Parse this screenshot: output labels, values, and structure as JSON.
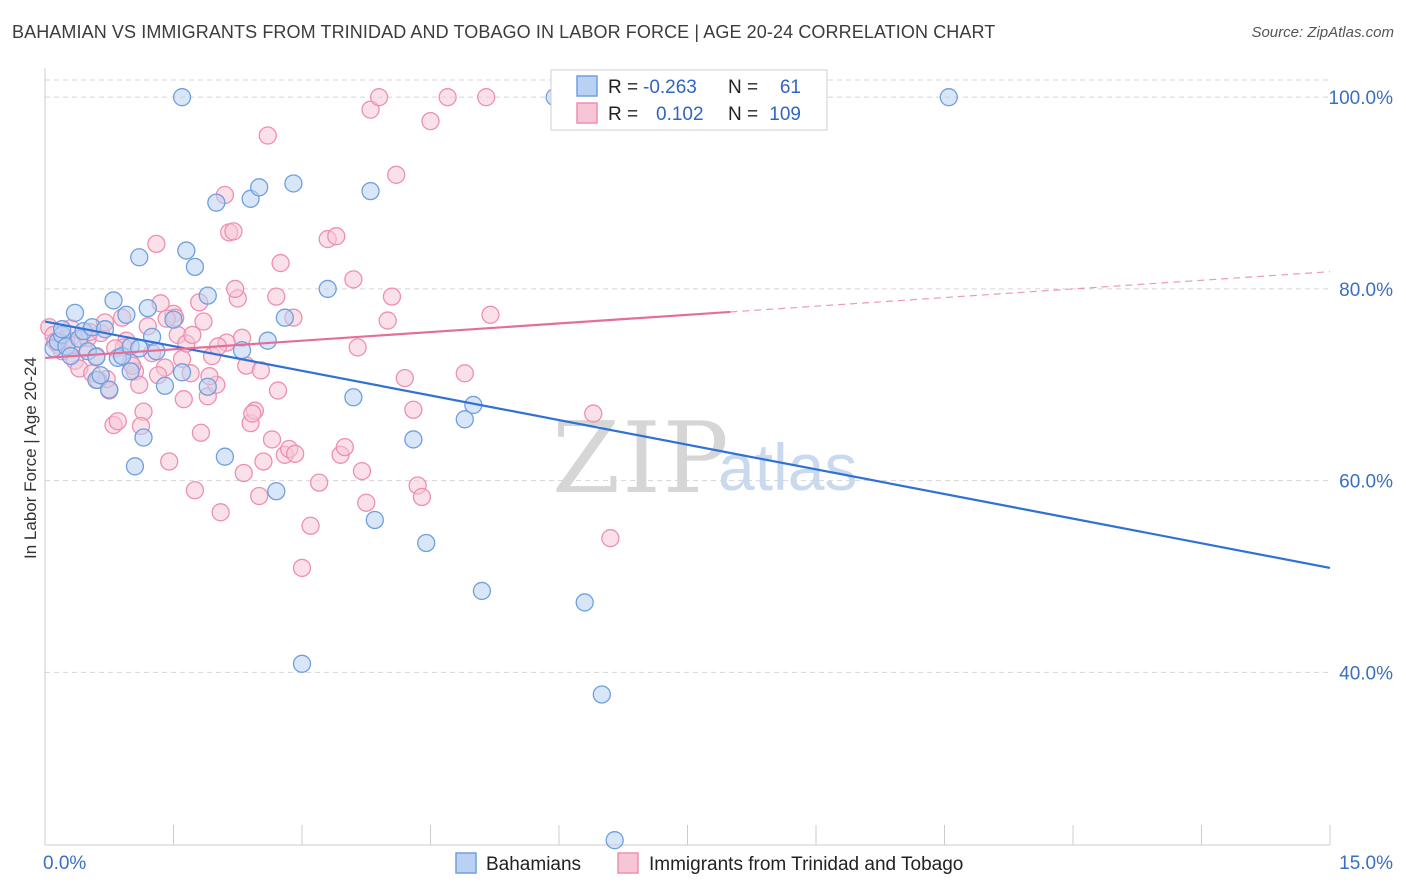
{
  "title": "BAHAMIAN VS IMMIGRANTS FROM TRINIDAD AND TOBAGO IN LABOR FORCE | AGE 20-24 CORRELATION CHART",
  "source": "Source: ZipAtlas.com",
  "watermark": {
    "zip": "ZIP",
    "atlas": "atlas"
  },
  "colors": {
    "blue": "#6f9fe0",
    "blue_fill": "#b9d1f2",
    "blue_line": "#2f72d4",
    "pink": "#ee8fb1",
    "pink_fill": "#f6c6d6",
    "pink_line": "#e56e99",
    "grid": "#d5d5d5",
    "tick_text": "#3a6fc4"
  },
  "legend_top": {
    "rows": [
      {
        "r_label": "R =",
        "r_value": "-0.263",
        "n_label": "N =",
        "n_value": "61",
        "series": "blue"
      },
      {
        "r_label": "R =",
        "r_value": "0.102",
        "n_label": "N =",
        "n_value": "109",
        "series": "pink"
      }
    ]
  },
  "legend_bottom": [
    "Bahamians",
    "Immigrants from Trinidad and Tobago"
  ],
  "chart_data": {
    "type": "scatter",
    "title": "BAHAMIAN VS IMMIGRANTS FROM TRINIDAD AND TOBAGO IN LABOR FORCE | AGE 20-24 CORRELATION CHART",
    "xlabel": "",
    "ylabel": "In Labor Force | Age 20-24",
    "xlim": [
      0,
      15
    ],
    "ylim": [
      22,
      102
    ],
    "x_tick_labels": [
      "0.0%",
      "15.0%"
    ],
    "y_ticks": [
      40,
      60,
      80,
      100
    ],
    "y_tick_labels": [
      "40.0%",
      "60.0%",
      "80.0%",
      "100.0%"
    ],
    "grid": true,
    "legend_placement": "bottom",
    "series": [
      {
        "name": "Bahamians",
        "color": "blue",
        "r": -0.263,
        "n": 61,
        "trend": {
          "x": [
            0,
            15
          ],
          "y": [
            76.6,
            50.9
          ],
          "dashed_from": null
        },
        "points": [
          [
            0.1,
            73.8
          ],
          [
            0.15,
            74.5
          ],
          [
            0.2,
            75.2
          ],
          [
            0.25,
            74.0
          ],
          [
            0.3,
            73.0
          ],
          [
            0.35,
            77.5
          ],
          [
            0.4,
            74.8
          ],
          [
            0.45,
            75.6
          ],
          [
            0.5,
            73.5
          ],
          [
            0.55,
            76.0
          ],
          [
            0.6,
            70.5
          ],
          [
            0.65,
            71.0
          ],
          [
            0.7,
            75.8
          ],
          [
            0.75,
            69.5
          ],
          [
            0.8,
            78.8
          ],
          [
            0.85,
            72.8
          ],
          [
            0.9,
            73.0
          ],
          [
            0.95,
            77.3
          ],
          [
            1.0,
            74.0
          ],
          [
            1.05,
            61.5
          ],
          [
            1.1,
            83.3
          ],
          [
            1.15,
            64.5
          ],
          [
            1.2,
            78.0
          ],
          [
            1.25,
            75.0
          ],
          [
            1.3,
            73.5
          ],
          [
            1.4,
            69.9
          ],
          [
            1.5,
            76.8
          ],
          [
            1.6,
            71.3
          ],
          [
            1.65,
            84.0
          ],
          [
            1.75,
            82.3
          ],
          [
            1.9,
            79.3
          ],
          [
            2.0,
            89.0
          ],
          [
            2.1,
            62.5
          ],
          [
            2.3,
            73.6
          ],
          [
            2.4,
            89.4
          ],
          [
            2.5,
            90.6
          ],
          [
            2.6,
            74.6
          ],
          [
            2.7,
            58.9
          ],
          [
            2.8,
            77.0
          ],
          [
            2.9,
            91.0
          ],
          [
            3.0,
            40.9
          ],
          [
            3.3,
            80.0
          ],
          [
            3.6,
            68.7
          ],
          [
            3.8,
            90.2
          ],
          [
            3.85,
            55.9
          ],
          [
            4.3,
            64.3
          ],
          [
            4.45,
            53.5
          ],
          [
            4.9,
            66.4
          ],
          [
            5.0,
            67.9
          ],
          [
            5.1,
            48.5
          ],
          [
            6.3,
            47.3
          ],
          [
            6.5,
            37.7
          ],
          [
            6.65,
            22.5
          ],
          [
            10.55,
            100.0
          ],
          [
            1.6,
            100.0
          ],
          [
            5.95,
            100.0
          ],
          [
            0.2,
            75.8
          ],
          [
            0.6,
            72.9
          ],
          [
            1.0,
            71.4
          ],
          [
            1.9,
            69.8
          ],
          [
            1.1,
            73.8
          ]
        ]
      },
      {
        "name": "Immigrants from Trinidad and Tobago",
        "color": "pink",
        "r": 0.102,
        "n": 109,
        "trend": {
          "x": [
            0,
            15
          ],
          "y": [
            72.8,
            81.8
          ],
          "dashed_from": 8.0
        },
        "points": [
          [
            0.05,
            76.0
          ],
          [
            0.1,
            75.2
          ],
          [
            0.15,
            74.2
          ],
          [
            0.2,
            73.5
          ],
          [
            0.25,
            74.8
          ],
          [
            0.3,
            75.9
          ],
          [
            0.35,
            72.5
          ],
          [
            0.4,
            71.7
          ],
          [
            0.45,
            73.8
          ],
          [
            0.5,
            74.9
          ],
          [
            0.55,
            71.2
          ],
          [
            0.6,
            73.0
          ],
          [
            0.65,
            75.4
          ],
          [
            0.7,
            76.5
          ],
          [
            0.75,
            69.4
          ],
          [
            0.8,
            65.8
          ],
          [
            0.85,
            66.2
          ],
          [
            0.9,
            77.0
          ],
          [
            0.95,
            74.6
          ],
          [
            1.0,
            72.3
          ],
          [
            1.05,
            71.4
          ],
          [
            1.1,
            70.0
          ],
          [
            1.15,
            67.2
          ],
          [
            1.2,
            76.1
          ],
          [
            1.25,
            73.3
          ],
          [
            1.3,
            84.7
          ],
          [
            1.35,
            78.5
          ],
          [
            1.4,
            71.8
          ],
          [
            1.45,
            62.0
          ],
          [
            1.5,
            77.4
          ],
          [
            1.55,
            75.2
          ],
          [
            1.6,
            72.7
          ],
          [
            1.65,
            74.3
          ],
          [
            1.7,
            71.2
          ],
          [
            1.75,
            59.0
          ],
          [
            1.8,
            78.6
          ],
          [
            1.85,
            76.6
          ],
          [
            1.9,
            68.8
          ],
          [
            1.95,
            73.0
          ],
          [
            2.0,
            70.0
          ],
          [
            2.05,
            56.7
          ],
          [
            2.1,
            89.8
          ],
          [
            2.15,
            85.9
          ],
          [
            2.2,
            86.0
          ],
          [
            2.25,
            79.0
          ],
          [
            2.3,
            74.9
          ],
          [
            2.35,
            72.0
          ],
          [
            2.4,
            66.0
          ],
          [
            2.45,
            67.3
          ],
          [
            2.5,
            58.4
          ],
          [
            2.55,
            62.0
          ],
          [
            2.6,
            96.0
          ],
          [
            2.65,
            64.3
          ],
          [
            2.7,
            79.2
          ],
          [
            2.75,
            82.7
          ],
          [
            2.8,
            62.7
          ],
          [
            2.85,
            63.3
          ],
          [
            2.9,
            77.0
          ],
          [
            3.0,
            50.9
          ],
          [
            3.1,
            55.3
          ],
          [
            3.2,
            59.8
          ],
          [
            3.3,
            85.2
          ],
          [
            3.4,
            85.5
          ],
          [
            3.45,
            62.7
          ],
          [
            3.5,
            63.5
          ],
          [
            3.6,
            81.0
          ],
          [
            3.65,
            73.9
          ],
          [
            3.7,
            61.0
          ],
          [
            3.75,
            57.7
          ],
          [
            3.8,
            98.7
          ],
          [
            3.9,
            100.0
          ],
          [
            4.0,
            76.7
          ],
          [
            4.05,
            79.2
          ],
          [
            4.1,
            91.9
          ],
          [
            4.2,
            70.7
          ],
          [
            4.3,
            67.4
          ],
          [
            4.35,
            59.5
          ],
          [
            4.4,
            58.3
          ],
          [
            4.5,
            97.5
          ],
          [
            4.7,
            100.0
          ],
          [
            4.9,
            71.2
          ],
          [
            5.2,
            77.3
          ],
          [
            6.4,
            67.0
          ],
          [
            6.6,
            54.0
          ],
          [
            5.15,
            100.0
          ],
          [
            0.12,
            74.5
          ],
          [
            0.32,
            74.1
          ],
          [
            0.52,
            75.5
          ],
          [
            0.72,
            70.6
          ],
          [
            0.92,
            73.9
          ],
          [
            1.12,
            65.7
          ],
          [
            1.32,
            71.0
          ],
          [
            1.52,
            77.0
          ],
          [
            1.72,
            75.2
          ],
          [
            1.92,
            70.9
          ],
          [
            2.12,
            74.4
          ],
          [
            2.32,
            60.8
          ],
          [
            2.52,
            71.5
          ],
          [
            2.72,
            69.4
          ],
          [
            2.92,
            62.8
          ],
          [
            1.42,
            76.9
          ],
          [
            1.62,
            68.5
          ],
          [
            1.82,
            65.0
          ],
          [
            2.02,
            74.0
          ],
          [
            2.22,
            80.0
          ],
          [
            2.42,
            67.0
          ],
          [
            0.62,
            70.5
          ],
          [
            0.82,
            73.8
          ],
          [
            1.02,
            72.0
          ]
        ]
      }
    ]
  }
}
